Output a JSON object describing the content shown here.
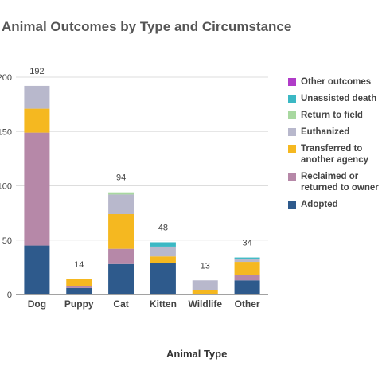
{
  "chart_data": {
    "type": "bar",
    "stacked": true,
    "title": "Animal Outcomes by Type and Circumstance",
    "xlabel": "Animal Type",
    "ylabel": "",
    "ylim": [
      0,
      200
    ],
    "y_ticks": [
      0,
      50,
      100,
      150,
      200
    ],
    "y_tick_labels": [
      "0",
      "50",
      "100",
      "150",
      "200"
    ],
    "grid": true,
    "legend_position": "right",
    "categories": [
      "Dog",
      "Puppy",
      "Cat",
      "Kitten",
      "Wildlife",
      "Other"
    ],
    "totals": [
      192,
      14,
      94,
      48,
      13,
      34
    ],
    "series": [
      {
        "name": "Adopted",
        "color": "#2e5a8c",
        "values": [
          45,
          6,
          28,
          29,
          0,
          13
        ]
      },
      {
        "name": "Reclaimed or returned to owner",
        "color": "#b688a8",
        "values": [
          104,
          2,
          14,
          0,
          0,
          5
        ]
      },
      {
        "name": "Transferred to another agency",
        "color": "#f5b820",
        "values": [
          22,
          6,
          32,
          6,
          4,
          12
        ]
      },
      {
        "name": "Euthanized",
        "color": "#b8b8cc",
        "values": [
          21,
          0,
          18,
          9,
          9,
          3
        ]
      },
      {
        "name": "Return to field",
        "color": "#a8d8a0",
        "values": [
          0,
          0,
          2,
          0,
          0,
          0
        ]
      },
      {
        "name": "Unassisted death",
        "color": "#3bb8c4",
        "values": [
          0,
          0,
          0,
          4,
          0,
          1
        ]
      },
      {
        "name": "Other outcomes",
        "color": "#b03cc8",
        "values": [
          0,
          0,
          0,
          0,
          0,
          0
        ]
      }
    ]
  }
}
